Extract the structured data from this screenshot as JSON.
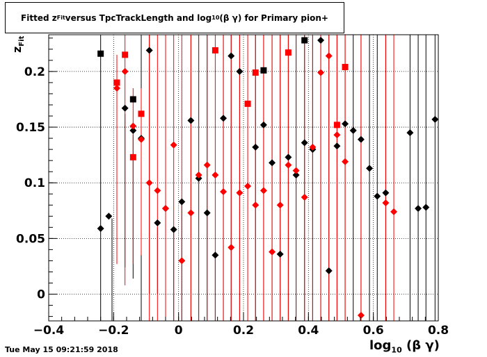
{
  "title": {
    "prefix": "Fitted  z",
    "sub1": "Fit",
    "middle": "  versus TpcTrackLength and log",
    "sub2": "10",
    "suffix": " (β γ) for Primary pion+"
  },
  "xaxis_title": {
    "main": "log",
    "sub": "10",
    "tail": " (β γ)"
  },
  "yaxis_title": {
    "main": "z",
    "sub": "Fit"
  },
  "timestamp": "Tue May 15 09:21:59 2018",
  "chart_data": {
    "type": "scatter",
    "xlim": [
      -0.4,
      0.8
    ],
    "ylim": [
      -0.024,
      0.233
    ],
    "x_ticks": [
      -0.4,
      -0.2,
      0,
      0.2,
      0.4,
      0.6,
      0.8
    ],
    "x_tick_labels": [
      "−0.4",
      "−0.2",
      "0",
      "0.2",
      "0.4",
      "0.6",
      "0.8"
    ],
    "y_ticks": [
      0,
      0.05,
      0.1,
      0.15,
      0.2
    ],
    "y_tick_labels": [
      "0",
      "0.05",
      "0.1",
      "0.15",
      "0.2"
    ],
    "grid": true,
    "colors": {
      "black_series": "#000000",
      "red_series": "#ff0000"
    },
    "series": [
      {
        "color": "#000000",
        "markers": "diamond",
        "points": [
          [
            -0.24,
            0.059
          ],
          [
            -0.215,
            0.07
          ],
          [
            -0.165,
            0.167
          ],
          [
            -0.14,
            0.147
          ],
          [
            -0.115,
            0.14
          ],
          [
            -0.09,
            0.219
          ],
          [
            -0.065,
            0.064
          ],
          [
            -0.04,
            0.077
          ],
          [
            -0.015,
            0.058
          ],
          [
            0.01,
            0.083
          ],
          [
            0.038,
            0.156
          ],
          [
            0.062,
            0.104
          ],
          [
            0.088,
            0.073
          ],
          [
            0.113,
            0.035
          ],
          [
            0.138,
            0.158
          ],
          [
            0.162,
            0.214
          ],
          [
            0.188,
            0.2
          ],
          [
            0.237,
            0.132
          ],
          [
            0.262,
            0.152
          ],
          [
            0.288,
            0.118
          ],
          [
            0.313,
            0.036
          ],
          [
            0.338,
            0.123
          ],
          [
            0.362,
            0.107
          ],
          [
            0.388,
            0.136
          ],
          [
            0.413,
            0.13
          ],
          [
            0.438,
            0.228
          ],
          [
            0.463,
            0.021
          ],
          [
            0.488,
            0.133
          ],
          [
            0.513,
            0.153
          ],
          [
            0.538,
            0.147
          ],
          [
            0.562,
            0.139
          ],
          [
            0.588,
            0.113
          ],
          [
            0.612,
            0.088
          ],
          [
            0.638,
            0.091
          ],
          [
            0.713,
            0.145
          ],
          [
            0.738,
            0.077
          ],
          [
            0.762,
            0.078
          ],
          [
            0.79,
            0.157
          ]
        ]
      },
      {
        "color": "#000000",
        "markers": "square",
        "points": [
          [
            -0.24,
            0.216
          ],
          [
            -0.14,
            0.175
          ],
          [
            0.262,
            0.201
          ],
          [
            0.388,
            0.228
          ]
        ]
      },
      {
        "color": "#ff0000",
        "markers": "diamond",
        "points": [
          [
            -0.19,
            0.185
          ],
          [
            -0.165,
            0.2
          ],
          [
            -0.14,
            0.151
          ],
          [
            -0.115,
            0.139
          ],
          [
            -0.09,
            0.1
          ],
          [
            -0.065,
            0.093
          ],
          [
            -0.04,
            0.077
          ],
          [
            -0.015,
            0.134
          ],
          [
            0.01,
            0.03
          ],
          [
            0.038,
            0.073
          ],
          [
            0.062,
            0.107
          ],
          [
            0.088,
            0.116
          ],
          [
            0.113,
            0.107
          ],
          [
            0.138,
            0.092
          ],
          [
            0.162,
            0.042
          ],
          [
            0.188,
            0.091
          ],
          [
            0.213,
            0.097
          ],
          [
            0.237,
            0.08
          ],
          [
            0.262,
            0.093
          ],
          [
            0.288,
            0.038
          ],
          [
            0.313,
            0.08
          ],
          [
            0.338,
            0.116
          ],
          [
            0.362,
            0.111
          ],
          [
            0.388,
            0.087
          ],
          [
            0.413,
            0.132
          ],
          [
            0.438,
            0.199
          ],
          [
            0.463,
            0.214
          ],
          [
            0.488,
            0.143
          ],
          [
            0.513,
            0.119
          ],
          [
            0.562,
            -0.019
          ],
          [
            0.638,
            0.082
          ],
          [
            0.663,
            0.074
          ]
        ]
      },
      {
        "color": "#ff0000",
        "markers": "square",
        "points": [
          [
            -0.19,
            0.19
          ],
          [
            -0.165,
            0.215
          ],
          [
            -0.14,
            0.123
          ],
          [
            -0.115,
            0.162
          ],
          [
            0.113,
            0.219
          ],
          [
            0.213,
            0.171
          ],
          [
            0.237,
            0.199
          ],
          [
            0.338,
            0.217
          ],
          [
            0.488,
            0.152
          ],
          [
            0.513,
            0.204
          ]
        ]
      }
    ],
    "black_vertical_lines": [
      [
        -0.24,
        -0.024,
        0.233
      ],
      [
        -0.205,
        -0.024,
        0.068
      ],
      [
        -0.165,
        0.024,
        0.162
      ],
      [
        -0.14,
        0.014,
        0.143
      ],
      [
        -0.115,
        -0.024,
        0.233
      ],
      [
        -0.09,
        0.0,
        0.233
      ],
      [
        -0.065,
        0.0,
        0.06
      ],
      [
        -0.04,
        -0.024,
        0.075
      ],
      [
        -0.015,
        -0.024,
        0.055
      ],
      [
        0.01,
        -0.024,
        0.08
      ],
      [
        0.038,
        -0.024,
        0.233
      ],
      [
        0.062,
        -0.024,
        0.233
      ],
      [
        0.088,
        -0.024,
        0.233
      ],
      [
        0.113,
        -0.024,
        0.032
      ],
      [
        0.138,
        -0.024,
        0.233
      ],
      [
        0.162,
        -0.024,
        0.233
      ],
      [
        0.188,
        -0.024,
        0.233
      ],
      [
        0.237,
        -0.024,
        0.233
      ],
      [
        0.262,
        -0.024,
        0.233
      ],
      [
        0.288,
        -0.024,
        0.233
      ],
      [
        0.313,
        -0.024,
        0.233
      ],
      [
        0.338,
        -0.024,
        0.233
      ],
      [
        0.362,
        -0.024,
        0.233
      ],
      [
        0.388,
        -0.024,
        0.233
      ],
      [
        0.413,
        -0.024,
        0.233
      ],
      [
        0.438,
        -0.024,
        0.233
      ],
      [
        0.463,
        -0.024,
        0.233
      ],
      [
        0.488,
        -0.024,
        0.233
      ],
      [
        0.513,
        -0.024,
        0.233
      ],
      [
        0.538,
        -0.024,
        0.233
      ],
      [
        0.562,
        -0.024,
        0.233
      ],
      [
        0.588,
        -0.024,
        0.233
      ],
      [
        0.612,
        -0.024,
        0.233
      ],
      [
        0.638,
        -0.024,
        0.233
      ],
      [
        0.713,
        -0.024,
        0.233
      ],
      [
        0.738,
        -0.024,
        0.233
      ],
      [
        0.762,
        -0.024,
        0.233
      ],
      [
        0.79,
        -0.024,
        0.233
      ]
    ],
    "red_vertical_lines": [
      [
        -0.19,
        0.027,
        0.215
      ],
      [
        -0.165,
        0.008,
        0.233
      ],
      [
        -0.14,
        0.027,
        0.185
      ],
      [
        -0.115,
        0.035,
        0.185
      ],
      [
        -0.09,
        -0.024,
        0.233
      ],
      [
        -0.065,
        -0.024,
        0.233
      ],
      [
        -0.04,
        -0.024,
        0.233
      ],
      [
        -0.015,
        -0.024,
        0.233
      ],
      [
        0.01,
        -0.024,
        0.233
      ],
      [
        0.038,
        -0.024,
        0.233
      ],
      [
        0.062,
        -0.024,
        0.233
      ],
      [
        0.088,
        -0.024,
        0.233
      ],
      [
        0.113,
        -0.024,
        0.233
      ],
      [
        0.138,
        -0.024,
        0.233
      ],
      [
        0.162,
        -0.024,
        0.233
      ],
      [
        0.188,
        -0.024,
        0.233
      ],
      [
        0.213,
        -0.024,
        0.233
      ],
      [
        0.237,
        -0.024,
        0.233
      ],
      [
        0.262,
        -0.024,
        0.233
      ],
      [
        0.288,
        -0.024,
        0.233
      ],
      [
        0.313,
        -0.024,
        0.233
      ],
      [
        0.338,
        -0.024,
        0.233
      ],
      [
        0.362,
        -0.024,
        0.233
      ],
      [
        0.388,
        -0.024,
        0.233
      ],
      [
        0.413,
        -0.024,
        0.233
      ],
      [
        0.438,
        -0.024,
        0.233
      ],
      [
        0.463,
        -0.024,
        0.233
      ],
      [
        0.488,
        -0.024,
        0.233
      ],
      [
        0.513,
        -0.024,
        0.233
      ],
      [
        0.562,
        -0.024,
        0.233
      ],
      [
        0.638,
        -0.024,
        0.233
      ],
      [
        0.663,
        -0.024,
        0.233
      ]
    ]
  }
}
